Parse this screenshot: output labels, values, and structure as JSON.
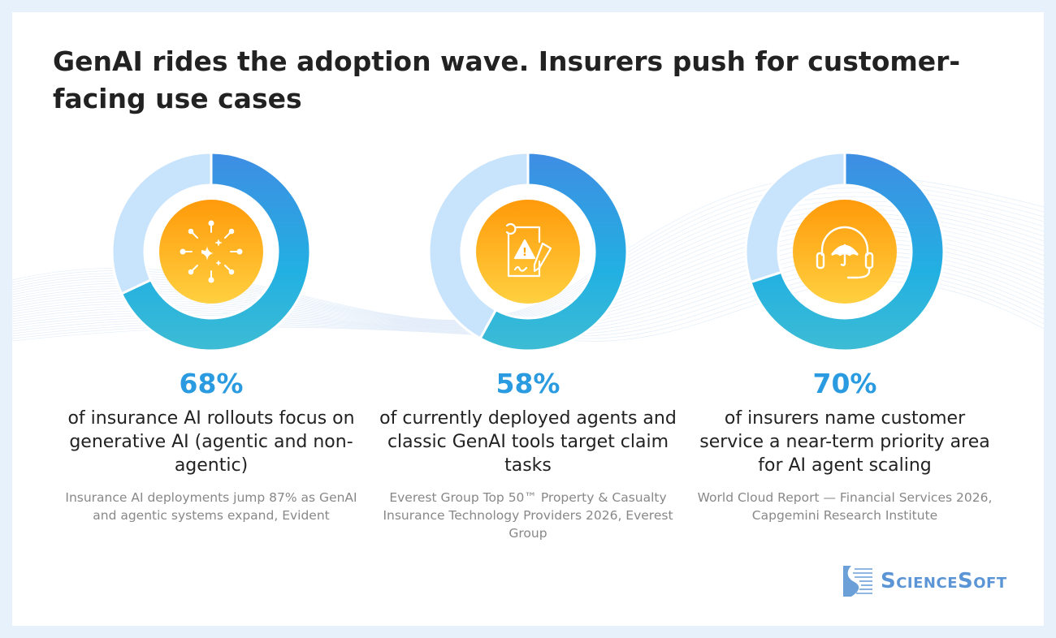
{
  "title": "GenAI rides the adoption wave. Insurers push for customer-facing use cases",
  "colors": {
    "blue_top": "#3f8de3",
    "blue_bottom": "#3dbcd4",
    "remainder": "#c8e3fc",
    "orange_top": "#ff9a0a",
    "orange_bottom": "#ffd040",
    "percent_text": "#2a9be0"
  },
  "chart_data": [
    {
      "type": "pie",
      "variant": "donut",
      "value": 68,
      "remainder": 32,
      "icon": "sparkles-icon",
      "label": "68%",
      "description": "of insurance AI rollouts focus on generative AI (agentic and non-agentic)",
      "source": "Insurance AI deployments jump 87% as GenAI and agentic systems expand, Evident"
    },
    {
      "type": "pie",
      "variant": "donut",
      "value": 58,
      "remainder": 42,
      "icon": "claim-document-warning-icon",
      "label": "58%",
      "description": "of currently deployed agents and classic GenAI tools target claim tasks",
      "source": "Everest Group Top 50™ Property & Casualty Insurance Technology Providers 2026, Everest Group"
    },
    {
      "type": "pie",
      "variant": "donut",
      "value": 70,
      "remainder": 30,
      "icon": "headset-umbrella-icon",
      "label": "70%",
      "description": "of insurers name customer service a near-term priority area for AI agent scaling",
      "source": "World Cloud Report — Financial Services 2026, Capgemini Research Institute"
    }
  ],
  "logo": "ScienceSoft"
}
